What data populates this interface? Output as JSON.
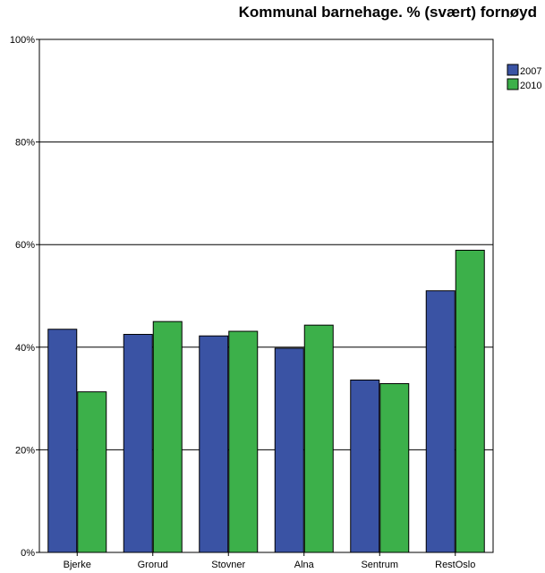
{
  "chart_data": {
    "type": "bar",
    "title": "Kommunal barnehage. % (svært) fornøyd",
    "xlabel": "",
    "ylabel": "",
    "categories": [
      "Bjerke",
      "Grorud",
      "Stovner",
      "Alna",
      "Sentrum",
      "RestOslo"
    ],
    "series": [
      {
        "name": "2007",
        "values": [
          43.5,
          42.5,
          42.2,
          39.8,
          33.6,
          51.0
        ],
        "color": "#3a53a4"
      },
      {
        "name": "2010",
        "values": [
          31.3,
          45.0,
          43.1,
          44.3,
          32.9,
          58.9
        ],
        "color": "#3cb04a"
      }
    ],
    "ylim": [
      0,
      100
    ],
    "yticks": [
      0,
      20,
      40,
      60,
      80,
      100
    ],
    "ytick_labels": [
      "0%",
      "20%",
      "40%",
      "60%",
      "80%",
      "100%"
    ],
    "grid": true,
    "legend_position": "top-right"
  }
}
